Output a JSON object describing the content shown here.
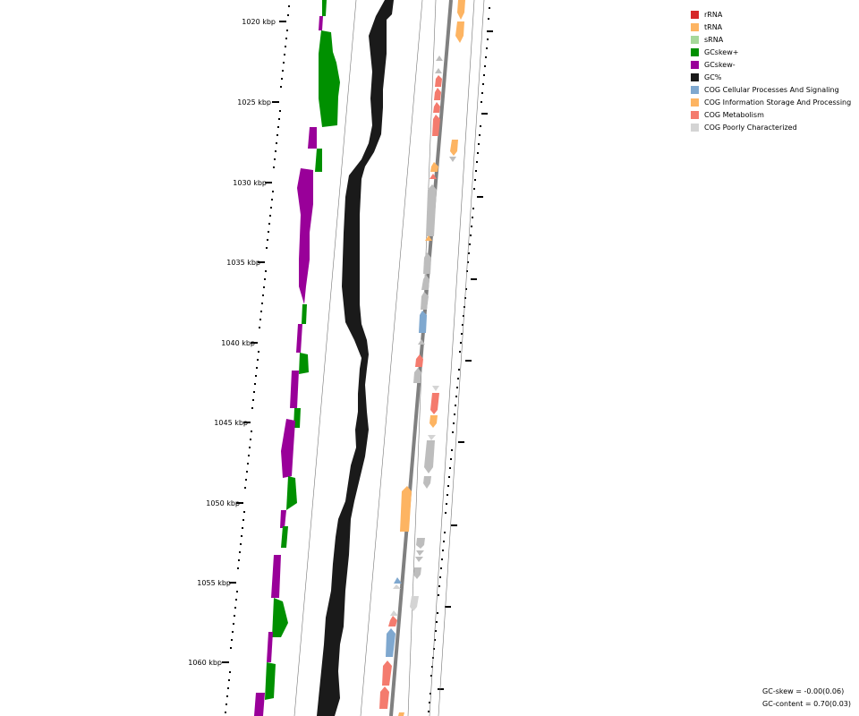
{
  "ticks": [
    {
      "label": "1020 kbp"
    },
    {
      "label": "1025 kbp"
    },
    {
      "label": "1030 kbp"
    },
    {
      "label": "1035 kbp"
    },
    {
      "label": "1040 kbp"
    },
    {
      "label": "1045 kbp"
    },
    {
      "label": "1050 kbp"
    },
    {
      "label": "1055 kbp"
    },
    {
      "label": "1060 kbp"
    }
  ],
  "legend": [
    {
      "label": "rRNA",
      "color": "#d62728"
    },
    {
      "label": "tRNA",
      "color": "#fdb462"
    },
    {
      "label": "sRNA",
      "color": "#a6d89a"
    },
    {
      "label": "GCskew+",
      "color": "#009000"
    },
    {
      "label": "GCskew-",
      "color": "#990099"
    },
    {
      "label": "GC%",
      "color": "#1a1a1a"
    },
    {
      "label": "COG Cellular Processes And Signaling",
      "color": "#7fa8cf"
    },
    {
      "label": "COG Information Storage And Processing",
      "color": "#fdb462"
    },
    {
      "label": "COG Metabolism",
      "color": "#f47b6e"
    },
    {
      "label": "COG Poorly Characterized",
      "color": "#d4d4d4"
    }
  ],
  "stats": {
    "gc_skew": "GC-skew = -0.00(0.06)",
    "gc_content": "GC-content = 0.70(0.03)"
  }
}
